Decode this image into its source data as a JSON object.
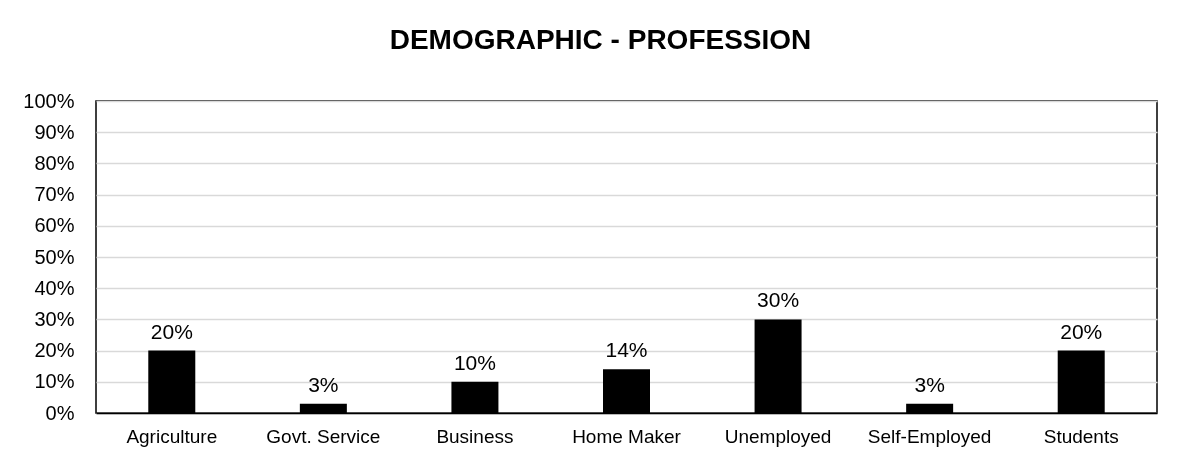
{
  "chart_data": {
    "type": "bar",
    "title": "DEMOGRAPHIC - PROFESSION",
    "categories": [
      "Agriculture",
      "Govt. Service",
      "Business",
      "Home Maker",
      "Unemployed",
      "Self-Employed",
      "Students"
    ],
    "values": [
      20,
      3,
      10,
      14,
      30,
      3,
      20
    ],
    "value_labels": [
      "20%",
      "3%",
      "10%",
      "14%",
      "30%",
      "3%",
      "20%"
    ],
    "color": "#000000",
    "ylim": [
      0,
      100
    ],
    "yticks": [
      {
        "value": 0,
        "label": "0%"
      },
      {
        "value": 10,
        "label": "10%"
      },
      {
        "value": 20,
        "label": "20%"
      },
      {
        "value": 30,
        "label": "30%"
      },
      {
        "value": 40,
        "label": "40%"
      },
      {
        "value": 50,
        "label": "50%"
      },
      {
        "value": 60,
        "label": "60%"
      },
      {
        "value": 70,
        "label": "70%"
      },
      {
        "value": 80,
        "label": "80%"
      },
      {
        "value": 90,
        "label": "90%"
      },
      {
        "value": 100,
        "label": "100%"
      }
    ],
    "grid": "y"
  }
}
